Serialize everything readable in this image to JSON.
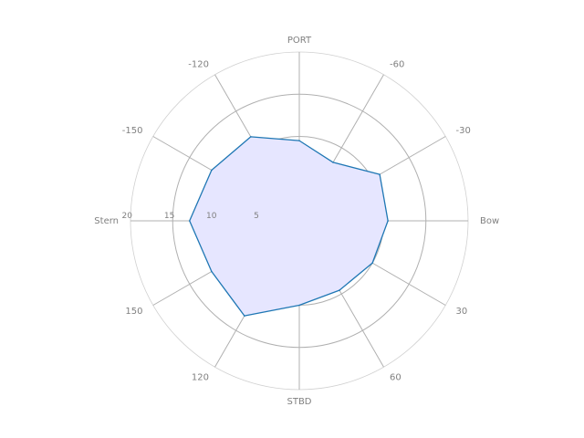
{
  "chart_data": {
    "type": "radar",
    "angular_ticks": [
      {
        "angle": 0,
        "label": "Bow"
      },
      {
        "angle": 30,
        "label": "30"
      },
      {
        "angle": 60,
        "label": "60"
      },
      {
        "angle": 90,
        "label": "STBD"
      },
      {
        "angle": 120,
        "label": "120"
      },
      {
        "angle": 150,
        "label": "150"
      },
      {
        "angle": 180,
        "label": "Stern"
      },
      {
        "angle": -150,
        "label": "-150"
      },
      {
        "angle": -120,
        "label": "-120"
      },
      {
        "angle": -90,
        "label": "PORT"
      },
      {
        "angle": -60,
        "label": "-60"
      },
      {
        "angle": -30,
        "label": "-30"
      }
    ],
    "radial_ticks": [
      5,
      10,
      15,
      20
    ],
    "rlim": [
      0,
      20
    ],
    "grid": true,
    "series": [
      {
        "angles": [
          0,
          30,
          60,
          90,
          120,
          150,
          180,
          -150,
          -120,
          -90,
          -60,
          -30
        ],
        "values": [
          10.5,
          10.0,
          9.5,
          10.0,
          13.0,
          12.0,
          13.0,
          12.0,
          11.5,
          9.5,
          8.0,
          11.0
        ],
        "line_color": "#1f77b4",
        "fill_color": "#e6e6ff"
      }
    ]
  }
}
